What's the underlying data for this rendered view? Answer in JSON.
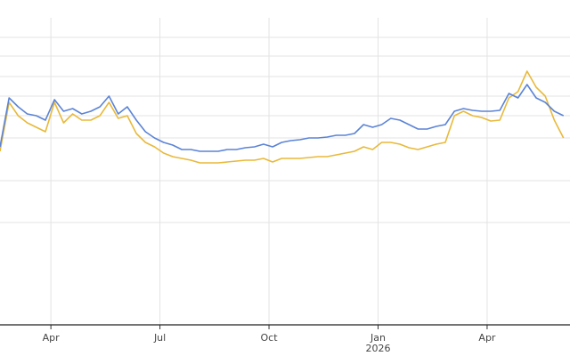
{
  "chart_data": {
    "type": "line",
    "xlim": [
      1.6,
      17.28
    ],
    "xticks": [
      {
        "value": 3,
        "label": "Apr"
      },
      {
        "value": 6,
        "label": "Jul"
      },
      {
        "value": 9,
        "label": "Oct"
      },
      {
        "value": 12,
        "label": "Jan",
        "sublabel": "2026"
      },
      {
        "value": 15,
        "label": "Apr"
      }
    ],
    "ylim": [
      0,
      345
    ],
    "yticks": [
      115,
      162,
      210,
      235,
      257,
      279,
      302,
      323
    ],
    "grid": true,
    "x": [
      1.6,
      1.85,
      2.1,
      2.35,
      2.6,
      2.85,
      3.1,
      3.35,
      3.6,
      3.85,
      4.1,
      4.35,
      4.6,
      4.85,
      5.1,
      5.35,
      5.6,
      5.85,
      6.1,
      6.35,
      6.6,
      6.85,
      7.1,
      7.35,
      7.6,
      7.85,
      8.1,
      8.35,
      8.6,
      8.85,
      9.1,
      9.35,
      9.6,
      9.85,
      10.1,
      10.35,
      10.6,
      10.85,
      11.1,
      11.35,
      11.6,
      11.85,
      12.1,
      12.35,
      12.6,
      12.85,
      13.1,
      13.35,
      13.6,
      13.85,
      14.1,
      14.35,
      14.6,
      14.85,
      15.1,
      15.35,
      15.6,
      15.85,
      16.1,
      16.35,
      16.6,
      16.85,
      17.1
    ],
    "series": [
      {
        "color": "#5b84d6",
        "values": [
          200,
          255,
          245,
          237,
          235,
          230,
          253,
          240,
          243,
          237,
          240,
          245,
          257,
          237,
          245,
          230,
          217,
          210,
          205,
          202,
          197,
          197,
          195,
          195,
          195,
          197,
          197,
          199,
          200,
          203,
          200,
          205,
          207,
          208,
          210,
          210,
          211,
          213,
          213,
          215,
          225,
          222,
          225,
          232,
          230,
          225,
          220,
          220,
          223,
          225,
          240,
          243,
          241,
          240,
          240,
          241,
          260,
          255,
          270,
          255,
          250,
          240,
          235
        ]
      },
      {
        "color": "#e8b93a",
        "values": [
          195,
          250,
          235,
          227,
          222,
          217,
          250,
          227,
          237,
          230,
          230,
          235,
          250,
          232,
          235,
          215,
          205,
          200,
          193,
          189,
          187,
          185,
          182,
          182,
          182,
          183,
          184,
          185,
          185,
          187,
          183,
          187,
          187,
          187,
          188,
          189,
          189,
          191,
          193,
          195,
          200,
          197,
          205,
          205,
          203,
          199,
          197,
          200,
          203,
          205,
          235,
          240,
          235,
          233,
          229,
          230,
          255,
          262,
          285,
          267,
          257,
          230,
          210
        ]
      }
    ]
  }
}
